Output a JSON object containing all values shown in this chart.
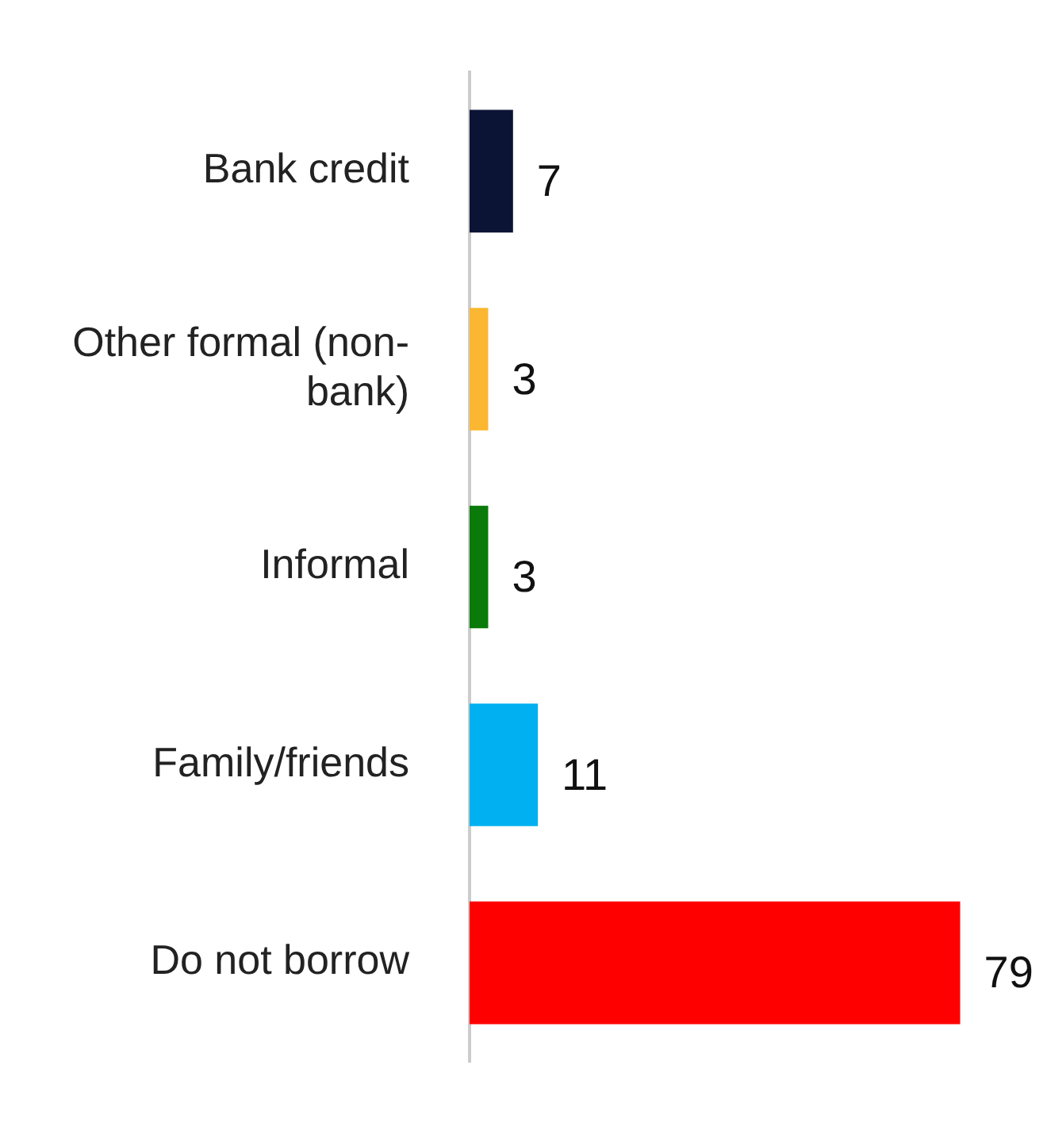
{
  "chart_data": {
    "type": "bar",
    "orientation": "horizontal",
    "categories": [
      "Bank credit",
      "Other formal (non-bank)",
      "Informal",
      "Family/friends",
      "Do not borrow"
    ],
    "values": [
      7,
      3,
      3,
      11,
      79
    ],
    "colors": [
      "#0c1436",
      "#fbb731",
      "#0a7a0a",
      "#00b0f0",
      "#ff0000"
    ],
    "data_labels": true,
    "tick_labels": "y"
  }
}
